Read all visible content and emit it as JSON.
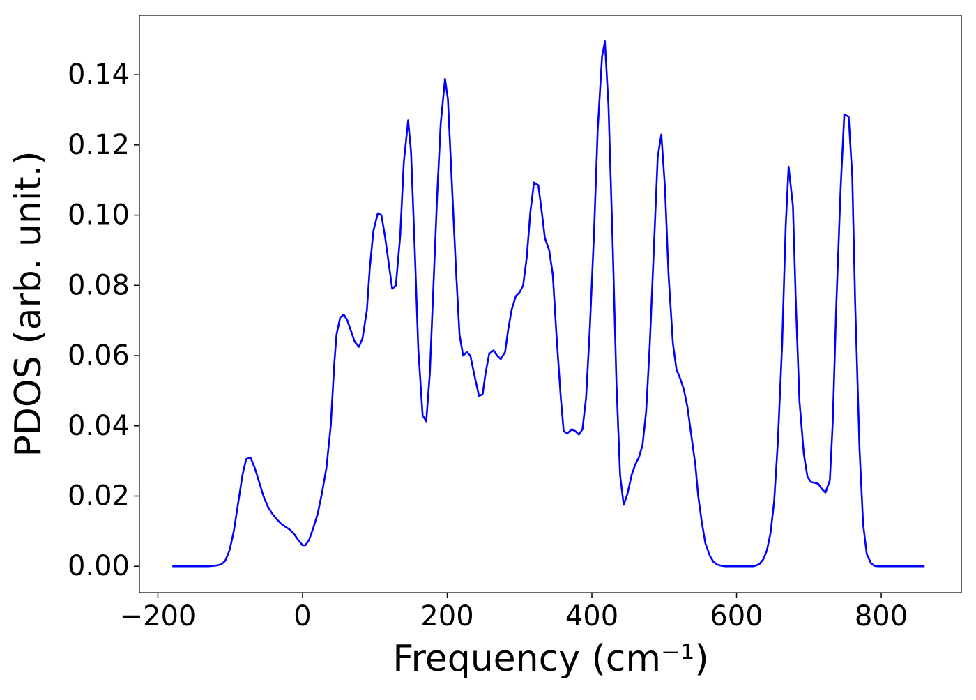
{
  "chart_data": {
    "type": "line",
    "x_label": "Frequency (cm⁻¹)",
    "y_label": "PDOS (arb. unit.)",
    "xlim": [
      -225.5,
      910.8
    ],
    "ylim": [
      -0.0075,
      0.1569
    ],
    "xticks": [
      {
        "value": -200,
        "label": "−200"
      },
      0,
      200,
      400,
      600,
      800
    ],
    "yticks": [
      {
        "value": 0,
        "label": "0.00"
      },
      {
        "value": 0.02,
        "label": "0.02"
      },
      {
        "value": 0.04,
        "label": "0.04"
      },
      {
        "value": 0.06,
        "label": "0.06"
      },
      {
        "value": 0.08,
        "label": "0.08"
      },
      {
        "value": 0.1,
        "label": "0.10"
      },
      {
        "value": 0.12,
        "label": "0.12"
      },
      {
        "value": 0.14,
        "label": "0.14"
      }
    ],
    "grid": false,
    "x": [
      -180,
      -130,
      -120,
      -113,
      -107,
      -101,
      -95,
      -89,
      -83,
      -78,
      -72,
      -66,
      -60,
      -54,
      -48,
      -42,
      -36,
      -30,
      -24,
      -18,
      -12,
      -6,
      0,
      4,
      9,
      15,
      21,
      27,
      33,
      39,
      44,
      47,
      52,
      57,
      62,
      67,
      72,
      78,
      83,
      89,
      93,
      98,
      104,
      109,
      114,
      120,
      124,
      129,
      135,
      140,
      146,
      150,
      155,
      160,
      166,
      171,
      176,
      181,
      186,
      191,
      197,
      201,
      206,
      212,
      217,
      222,
      227,
      232,
      238,
      244,
      249,
      253,
      258,
      264,
      269,
      274,
      280,
      284,
      289,
      295,
      300,
      305,
      310,
      315,
      320,
      326,
      331,
      335,
      341,
      346,
      351,
      357,
      361,
      366,
      372,
      377,
      382,
      387,
      392,
      397,
      403,
      408,
      414,
      418,
      423,
      429,
      434,
      439,
      444,
      449,
      455,
      460,
      465,
      470,
      475,
      480,
      486,
      491,
      496,
      501,
      506,
      512,
      517,
      522,
      527,
      532,
      537,
      543,
      547,
      552,
      557,
      563,
      568,
      573,
      578,
      584,
      623,
      627,
      632,
      637,
      642,
      647,
      652,
      657,
      663,
      668,
      672,
      678,
      682,
      687,
      693,
      698,
      703,
      708,
      713,
      718,
      723,
      729,
      733,
      738,
      744,
      749,
      755,
      760,
      764,
      770,
      775,
      780,
      786,
      791,
      796,
      860
    ],
    "series": [
      {
        "color": "#0000ff",
        "values": [
          0,
          0,
          0.0002,
          0.0005,
          0.0015,
          0.0045,
          0.01,
          0.018,
          0.026,
          0.0305,
          0.031,
          0.028,
          0.024,
          0.02,
          0.017,
          0.015,
          0.0135,
          0.0122,
          0.0113,
          0.0105,
          0.0093,
          0.0075,
          0.006,
          0.006,
          0.0075,
          0.011,
          0.015,
          0.021,
          0.028,
          0.04,
          0.058,
          0.066,
          0.0708,
          0.0717,
          0.07,
          0.067,
          0.064,
          0.0625,
          0.065,
          0.073,
          0.085,
          0.0955,
          0.1005,
          0.1,
          0.094,
          0.085,
          0.079,
          0.08,
          0.094,
          0.115,
          0.127,
          0.118,
          0.091,
          0.062,
          0.043,
          0.0413,
          0.055,
          0.08,
          0.105,
          0.126,
          0.1388,
          0.133,
          0.111,
          0.085,
          0.066,
          0.06,
          0.061,
          0.06,
          0.054,
          0.0485,
          0.049,
          0.055,
          0.0605,
          0.0615,
          0.06,
          0.059,
          0.061,
          0.067,
          0.073,
          0.077,
          0.078,
          0.08,
          0.088,
          0.101,
          0.1093,
          0.1085,
          0.1005,
          0.0935,
          0.09,
          0.083,
          0.066,
          0.048,
          0.0385,
          0.0378,
          0.039,
          0.0385,
          0.0375,
          0.039,
          0.048,
          0.067,
          0.095,
          0.124,
          0.145,
          0.1495,
          0.131,
          0.09,
          0.052,
          0.026,
          0.0175,
          0.0205,
          0.026,
          0.029,
          0.031,
          0.0345,
          0.044,
          0.063,
          0.092,
          0.1165,
          0.123,
          0.108,
          0.083,
          0.0635,
          0.056,
          0.0535,
          0.0505,
          0.0455,
          0.038,
          0.029,
          0.02,
          0.0125,
          0.0065,
          0.003,
          0.0013,
          0.0005,
          0.0002,
          0,
          0,
          0.0002,
          0.0007,
          0.002,
          0.0045,
          0.0095,
          0.0185,
          0.035,
          0.063,
          0.097,
          0.1138,
          0.1025,
          0.075,
          0.047,
          0.032,
          0.0255,
          0.024,
          0.0238,
          0.0235,
          0.022,
          0.021,
          0.0245,
          0.041,
          0.075,
          0.108,
          0.1287,
          0.128,
          0.111,
          0.075,
          0.0335,
          0.012,
          0.0035,
          0.0008,
          0.0001,
          0,
          0
        ]
      }
    ]
  }
}
